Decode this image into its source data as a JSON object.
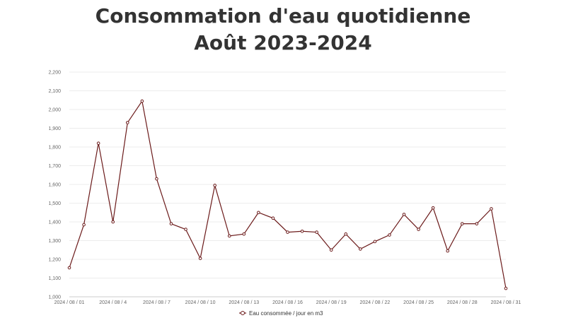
{
  "chart_data": {
    "type": "line",
    "title_line1": "Consommation d'eau quotidienne",
    "title_line2": "Août 2023-2024",
    "xlabel": "",
    "ylabel": "",
    "ylim": [
      1000,
      2200
    ],
    "y_ticks": [
      "1,000",
      "1,100",
      "1,200",
      "1,300",
      "1,400",
      "1,500",
      "1,600",
      "1,700",
      "1,800",
      "1,900",
      "2,000",
      "2,100",
      "2,200"
    ],
    "x": [
      "2024 / 08 / 01",
      "2024 / 08 / 02",
      "2024 / 08 / 03",
      "2024 / 08 / 04",
      "2024 / 08 / 05",
      "2024 / 08 / 06",
      "2024 / 08 / 07",
      "2024 / 08 / 08",
      "2024 / 08 / 09",
      "2024 / 08 / 10",
      "2024 / 08 / 11",
      "2024 / 08 / 12",
      "2024 / 08 / 13",
      "2024 / 08 / 14",
      "2024 / 08 / 15",
      "2024 / 08 / 16",
      "2024 / 08 / 17",
      "2024 / 08 / 18",
      "2024 / 08 / 19",
      "2024 / 08 / 20",
      "2024 / 08 / 21",
      "2024 / 08 / 22",
      "2024 / 08 / 23",
      "2024 / 08 / 24",
      "2024 / 08 / 25",
      "2024 / 08 / 26",
      "2024 / 08 / 27",
      "2024 / 08 / 28",
      "2024 / 08 / 29",
      "2024 / 08 / 30",
      "2024 / 08 / 31"
    ],
    "x_tick_labels": [
      "2024 / 08 / 01",
      "2024 / 08 / 4",
      "2024 / 08 / 7",
      "2024 / 08 / 10",
      "2024 / 08 / 13",
      "2024 / 08 / 16",
      "2024 / 08 / 19",
      "2024 / 08 / 22",
      "2024 / 08 / 25",
      "2024 / 08 / 28",
      "2024 / 08 / 31"
    ],
    "series": [
      {
        "name": "Eau consommée / jour en m3",
        "color": "#6b1a1a",
        "values": [
          1155,
          1385,
          1820,
          1400,
          1930,
          2045,
          1630,
          1390,
          1360,
          1205,
          1595,
          1325,
          1335,
          1450,
          1420,
          1345,
          1350,
          1345,
          1250,
          1335,
          1255,
          1295,
          1330,
          1440,
          1360,
          1475,
          1245,
          1390,
          1390,
          1470,
          1045
        ]
      }
    ],
    "grid": true,
    "legend_position": "bottom-center"
  }
}
